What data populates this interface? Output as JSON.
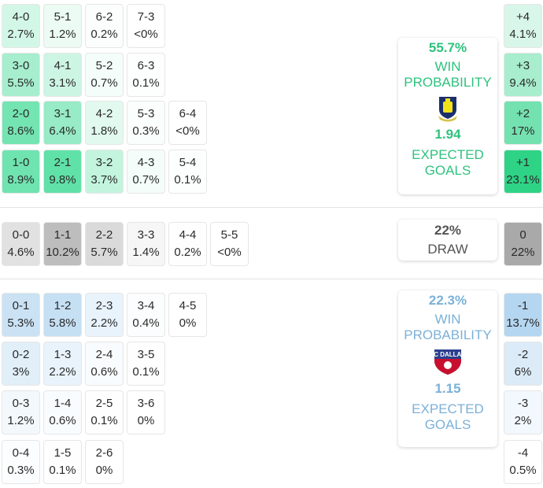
{
  "home": {
    "win_probability": "55.7%",
    "win_label_1": "WIN",
    "win_label_2": "PROBABILITY",
    "expected_goals": "1.94",
    "xg_label_1": "EXPECTED",
    "xg_label_2": "GOALS",
    "crest": "brondby-crest-icon",
    "color": "#2ec27e"
  },
  "draw": {
    "probability": "22%",
    "label": "DRAW"
  },
  "away": {
    "win_probability": "22.3%",
    "win_label_1": "WIN",
    "win_label_2": "PROBABILITY",
    "expected_goals": "1.15",
    "xg_label_1": "EXPECTED",
    "xg_label_2": "GOALS",
    "crest": "fc-dallas-crest-icon",
    "color": "#7bb1d8"
  },
  "home_rows": [
    [
      {
        "s": "4-0",
        "p": "2.7%"
      },
      {
        "s": "5-1",
        "p": "1.2%"
      },
      {
        "s": "6-2",
        "p": "0.2%"
      },
      {
        "s": "7-3",
        "p": "<0%"
      }
    ],
    [
      {
        "s": "3-0",
        "p": "5.5%"
      },
      {
        "s": "4-1",
        "p": "3.1%"
      },
      {
        "s": "5-2",
        "p": "0.7%"
      },
      {
        "s": "6-3",
        "p": "0.1%"
      }
    ],
    [
      {
        "s": "2-0",
        "p": "8.6%"
      },
      {
        "s": "3-1",
        "p": "6.4%"
      },
      {
        "s": "4-2",
        "p": "1.8%"
      },
      {
        "s": "5-3",
        "p": "0.3%"
      },
      {
        "s": "6-4",
        "p": "<0%"
      }
    ],
    [
      {
        "s": "1-0",
        "p": "8.9%"
      },
      {
        "s": "2-1",
        "p": "9.8%"
      },
      {
        "s": "3-2",
        "p": "3.7%"
      },
      {
        "s": "4-3",
        "p": "0.7%"
      },
      {
        "s": "5-4",
        "p": "0.1%"
      }
    ]
  ],
  "draw_row": [
    {
      "s": "0-0",
      "p": "4.6%"
    },
    {
      "s": "1-1",
      "p": "10.2%"
    },
    {
      "s": "2-2",
      "p": "5.7%"
    },
    {
      "s": "3-3",
      "p": "1.4%"
    },
    {
      "s": "4-4",
      "p": "0.2%"
    },
    {
      "s": "5-5",
      "p": "<0%"
    }
  ],
  "away_rows": [
    [
      {
        "s": "0-1",
        "p": "5.3%"
      },
      {
        "s": "1-2",
        "p": "5.8%"
      },
      {
        "s": "2-3",
        "p": "2.2%"
      },
      {
        "s": "3-4",
        "p": "0.4%"
      },
      {
        "s": "4-5",
        "p": "0%"
      }
    ],
    [
      {
        "s": "0-2",
        "p": "3%"
      },
      {
        "s": "1-3",
        "p": "2.2%"
      },
      {
        "s": "2-4",
        "p": "0.6%"
      },
      {
        "s": "3-5",
        "p": "0.1%"
      }
    ],
    [
      {
        "s": "0-3",
        "p": "1.2%"
      },
      {
        "s": "1-4",
        "p": "0.6%"
      },
      {
        "s": "2-5",
        "p": "0.1%"
      },
      {
        "s": "3-6",
        "p": "0%"
      }
    ],
    [
      {
        "s": "0-4",
        "p": "0.3%"
      },
      {
        "s": "1-5",
        "p": "0.1%"
      },
      {
        "s": "2-6",
        "p": "0%"
      }
    ]
  ],
  "margins": [
    {
      "s": "+4",
      "p": "4.1%"
    },
    {
      "s": "+3",
      "p": "9.4%"
    },
    {
      "s": "+2",
      "p": "17%"
    },
    {
      "s": "+1",
      "p": "23.1%"
    },
    {
      "s": "0",
      "p": "22%"
    },
    {
      "s": "-1",
      "p": "13.7%"
    },
    {
      "s": "-2",
      "p": "6%"
    },
    {
      "s": "-3",
      "p": "2%"
    },
    {
      "s": "-4",
      "p": "0.5%"
    }
  ],
  "chart_data": {
    "type": "heatmap",
    "title": "Scoreline probabilities",
    "home_win_probability": 55.7,
    "draw_probability": 22,
    "away_win_probability": 22.3,
    "home_expected_goals": 1.94,
    "away_expected_goals": 1.15,
    "scorelines": {
      "4-0": 2.7,
      "5-1": 1.2,
      "6-2": 0.2,
      "7-3": 0,
      "3-0": 5.5,
      "4-1": 3.1,
      "5-2": 0.7,
      "6-3": 0.1,
      "2-0": 8.6,
      "3-1": 6.4,
      "4-2": 1.8,
      "5-3": 0.3,
      "6-4": 0,
      "1-0": 8.9,
      "2-1": 9.8,
      "3-2": 3.7,
      "4-3": 0.7,
      "5-4": 0.1,
      "0-0": 4.6,
      "1-1": 10.2,
      "2-2": 5.7,
      "3-3": 1.4,
      "4-4": 0.2,
      "5-5": 0,
      "0-1": 5.3,
      "1-2": 5.8,
      "2-3": 2.2,
      "3-4": 0.4,
      "4-5": 0,
      "0-2": 3,
      "1-3": 2.2,
      "2-4": 0.6,
      "3-5": 0.1,
      "0-3": 1.2,
      "1-4": 0.6,
      "2-5": 0.1,
      "3-6": 0,
      "0-4": 0.3,
      "1-5": 0.1,
      "2-6": 0
    },
    "goal_margins": {
      "+4": 4.1,
      "+3": 9.4,
      "+2": 17,
      "+1": 23.1,
      "0": 22,
      "-1": 13.7,
      "-2": 6,
      "-3": 2,
      "-4": 0.5
    }
  }
}
